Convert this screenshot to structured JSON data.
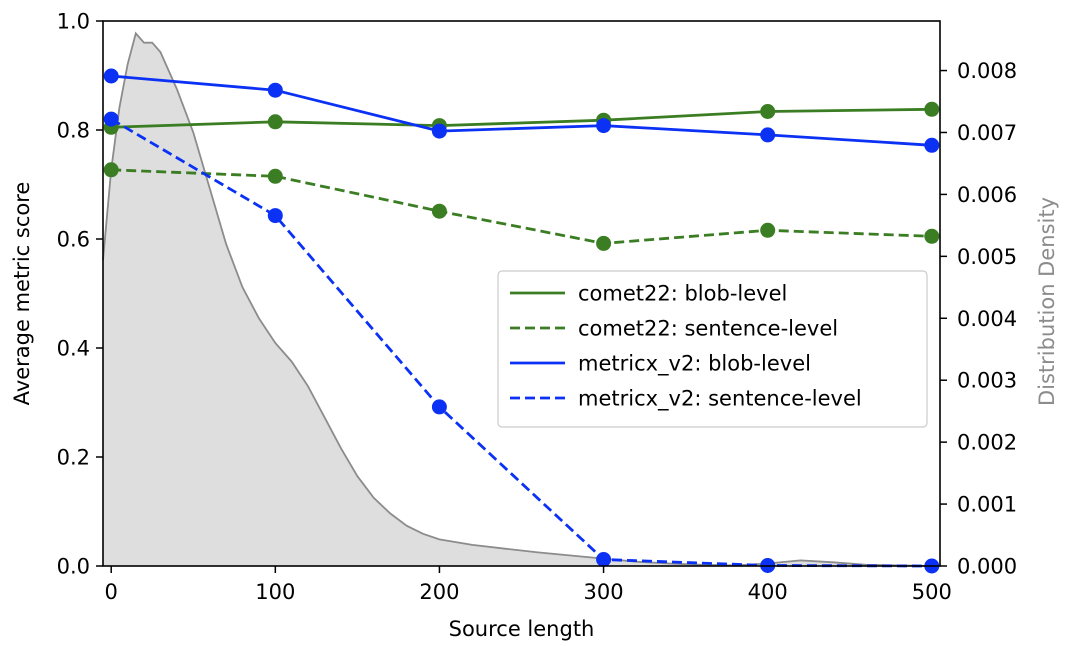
{
  "chart_data": {
    "type": "line",
    "title": "",
    "xlabel": "Source length",
    "ylabel": "Average metric score",
    "y2label": "Distribution Density",
    "xlim": [
      -5,
      505
    ],
    "ylim": [
      0,
      1.0
    ],
    "y2lim": [
      0,
      0.0088
    ],
    "x_ticks": [
      0,
      100,
      200,
      300,
      400,
      500
    ],
    "y_ticks": [
      0.0,
      0.2,
      0.4,
      0.6,
      0.8,
      1.0
    ],
    "y_tick_labels": [
      "0.0",
      "0.2",
      "0.4",
      "0.6",
      "0.8",
      "1.0"
    ],
    "y2_ticks": [
      0,
      0.001,
      0.002,
      0.003,
      0.004,
      0.005,
      0.006,
      0.007,
      0.008
    ],
    "y2_tick_labels": [
      "0.000",
      "0.001",
      "0.002",
      "0.003",
      "0.004",
      "0.005",
      "0.006",
      "0.007",
      "0.008"
    ],
    "legend_position": "center-right",
    "series": [
      {
        "name": "comet22: blob-level",
        "color": "#3a7d22",
        "style": "solid",
        "x": [
          0,
          100,
          200,
          300,
          400,
          500
        ],
        "values": [
          0.805,
          0.815,
          0.808,
          0.818,
          0.834,
          0.838
        ]
      },
      {
        "name": "comet22: sentence-level",
        "color": "#3a7d22",
        "style": "dashed",
        "x": [
          0,
          100,
          200,
          300,
          400,
          500
        ],
        "values": [
          0.727,
          0.715,
          0.651,
          0.592,
          0.616,
          0.605
        ]
      },
      {
        "name": "metricx_v2: blob-level",
        "color": "#0b31f5",
        "style": "solid",
        "x": [
          0,
          100,
          200,
          300,
          400,
          500
        ],
        "values": [
          0.899,
          0.873,
          0.798,
          0.808,
          0.791,
          0.772
        ]
      },
      {
        "name": "metricx_v2: sentence-level",
        "color": "#0b31f5",
        "style": "dashed",
        "x": [
          0,
          100,
          200,
          300,
          400,
          500
        ],
        "values": [
          0.82,
          0.643,
          0.292,
          0.012,
          0.001,
          0.0
        ]
      }
    ],
    "density": {
      "name": "Distribution Density",
      "fill": "#dedede",
      "stroke": "#8c8c8c",
      "x": [
        -5,
        0,
        5,
        10,
        15,
        20,
        25,
        30,
        35,
        40,
        50,
        60,
        70,
        80,
        90,
        100,
        110,
        120,
        130,
        140,
        150,
        160,
        170,
        180,
        190,
        200,
        220,
        240,
        260,
        280,
        300,
        320,
        340,
        360,
        380,
        400,
        420,
        440,
        460,
        480,
        500
      ],
      "values": [
        0.00494,
        0.0064,
        0.0074,
        0.0081,
        0.0086,
        0.00845,
        0.00845,
        0.0083,
        0.008,
        0.0077,
        0.007,
        0.0061,
        0.0052,
        0.0045,
        0.004,
        0.0036,
        0.0033,
        0.0029,
        0.0024,
        0.0019,
        0.00145,
        0.0011,
        0.00085,
        0.00065,
        0.00052,
        0.00043,
        0.00034,
        0.00028,
        0.00022,
        0.00017,
        0.00012,
        7e-05,
        4e-05,
        2e-05,
        1e-05,
        4e-05,
        9e-05,
        6e-05,
        2e-05,
        1e-05,
        0.0
      ]
    }
  }
}
